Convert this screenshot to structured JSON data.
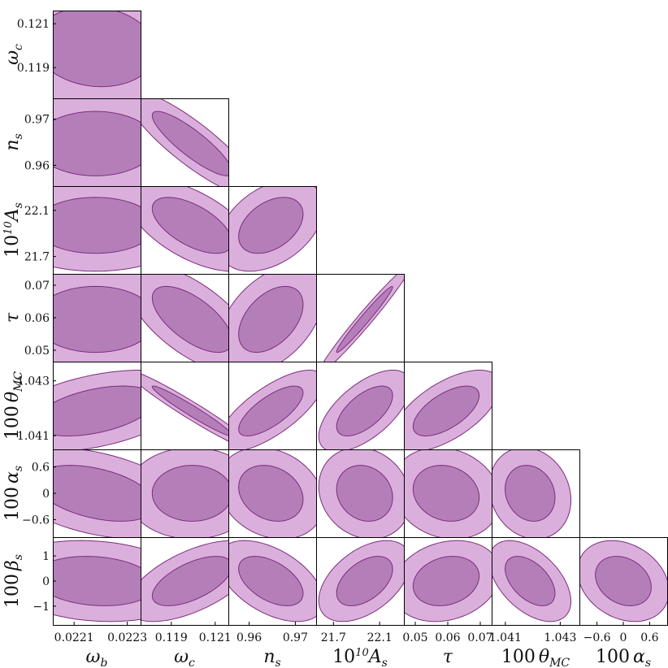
{
  "chart_data": {
    "type": "triangle-contour",
    "colors": {
      "outer_fill": "#dbafdc",
      "inner_fill": "#b47fb9",
      "contour_line": "#7b2d7c"
    },
    "parameters": [
      {
        "id": "omega_b",
        "label_main": "ω",
        "label_sub": "b",
        "label_sup": "",
        "label_prefix": "",
        "label_suffix": "",
        "range": [
          0.02202,
          0.02235
        ],
        "ticks": [
          0.0221,
          0.0223
        ],
        "tick_labels": [
          "0.0221",
          "0.0223"
        ],
        "mean": 0.02218,
        "sigma": 0.00015
      },
      {
        "id": "omega_c",
        "label_main": "ω",
        "label_sub": "c",
        "label_sup": "",
        "label_prefix": "",
        "label_suffix": "",
        "range": [
          0.1176,
          0.1216
        ],
        "ticks": [
          0.119,
          0.121
        ],
        "tick_labels": [
          "0.119",
          "0.121"
        ],
        "mean": 0.11995,
        "sigma": 0.0012
      },
      {
        "id": "n_s",
        "label_main": "n",
        "label_sub": "s",
        "label_sup": "",
        "label_prefix": "",
        "label_suffix": "",
        "range": [
          0.9555,
          0.9745
        ],
        "ticks": [
          0.96,
          0.97
        ],
        "tick_labels": [
          "0.96",
          "0.97"
        ],
        "mean": 0.9647,
        "sigma": 0.0046
      },
      {
        "id": "A_s",
        "label_main": "A",
        "label_sub": "s",
        "label_sup": "10",
        "label_prefix": "10",
        "label_suffix": "",
        "range": [
          21.55,
          22.31
        ],
        "ticks": [
          21.7,
          22.1
        ],
        "tick_labels": [
          "21.7",
          "22.1"
        ],
        "mean": 21.97,
        "sigma": 0.16
      },
      {
        "id": "tau",
        "label_main": "τ",
        "label_sub": "",
        "label_sup": "",
        "label_prefix": "",
        "label_suffix": "",
        "range": [
          0.0465,
          0.0735
        ],
        "ticks": [
          0.05,
          0.06,
          0.07
        ],
        "tick_labels": [
          "0.05",
          "0.06",
          "0.07"
        ],
        "mean": 0.0595,
        "sigma": 0.0067
      },
      {
        "id": "theta_MC",
        "label_main": "θ",
        "label_sub": "MC",
        "label_sup": "",
        "label_prefix": "100",
        "label_suffix": "",
        "range": [
          1.0405,
          1.0437
        ],
        "ticks": [
          1.041,
          1.043
        ],
        "tick_labels": [
          "1.041",
          "1.043"
        ],
        "mean": 1.0419,
        "sigma": 0.0006
      },
      {
        "id": "alpha_s",
        "label_main": "α",
        "label_sub": "s",
        "label_sup": "",
        "label_prefix": "100",
        "label_suffix": "",
        "range": [
          -1.0,
          1.0
        ],
        "ticks": [
          -0.6,
          0,
          0.6
        ],
        "tick_labels": [
          "−0.6",
          "0",
          "0.6"
        ],
        "mean": 0.0,
        "sigma": 0.42
      },
      {
        "id": "beta_s",
        "label_main": "β",
        "label_sub": "s",
        "label_sup": "",
        "label_prefix": "100",
        "label_suffix": "",
        "range": [
          -1.75,
          1.75
        ],
        "ticks": [
          -1,
          0,
          1
        ],
        "tick_labels": [
          "−1",
          "0",
          "1"
        ],
        "mean": 0.0,
        "sigma": 0.65
      }
    ],
    "panels": [
      {
        "x": 0,
        "y": 1,
        "rho": -0.1
      },
      {
        "x": 0,
        "y": 2,
        "rho": 0.0
      },
      {
        "x": 1,
        "y": 2,
        "rho": -0.87
      },
      {
        "x": 0,
        "y": 3,
        "rho": 0.0
      },
      {
        "x": 1,
        "y": 3,
        "rho": -0.6
      },
      {
        "x": 2,
        "y": 3,
        "rho": 0.4
      },
      {
        "x": 0,
        "y": 4,
        "rho": 0.0
      },
      {
        "x": 1,
        "y": 4,
        "rho": -0.65
      },
      {
        "x": 2,
        "y": 4,
        "rho": 0.45
      },
      {
        "x": 3,
        "y": 4,
        "rho": 0.98
      },
      {
        "x": 0,
        "y": 5,
        "rho": 0.45
      },
      {
        "x": 1,
        "y": 5,
        "rho": -0.97
      },
      {
        "x": 2,
        "y": 5,
        "rho": 0.73
      },
      {
        "x": 3,
        "y": 5,
        "rho": 0.62
      },
      {
        "x": 4,
        "y": 5,
        "rho": 0.62
      },
      {
        "x": 0,
        "y": 6,
        "rho": -0.42
      },
      {
        "x": 1,
        "y": 6,
        "rho": 0.0
      },
      {
        "x": 2,
        "y": 6,
        "rho": -0.22
      },
      {
        "x": 3,
        "y": 6,
        "rho": -0.15
      },
      {
        "x": 4,
        "y": 6,
        "rho": -0.15
      },
      {
        "x": 5,
        "y": 6,
        "rho": -0.15
      },
      {
        "x": 0,
        "y": 7,
        "rho": -0.15
      },
      {
        "x": 1,
        "y": 7,
        "rho": 0.6
      },
      {
        "x": 2,
        "y": 7,
        "rho": -0.5
      },
      {
        "x": 3,
        "y": 7,
        "rho": 0.48
      },
      {
        "x": 4,
        "y": 7,
        "rho": 0.2
      },
      {
        "x": 5,
        "y": 7,
        "rho": -0.5
      },
      {
        "x": 6,
        "y": 7,
        "rho": -0.25
      }
    ]
  }
}
